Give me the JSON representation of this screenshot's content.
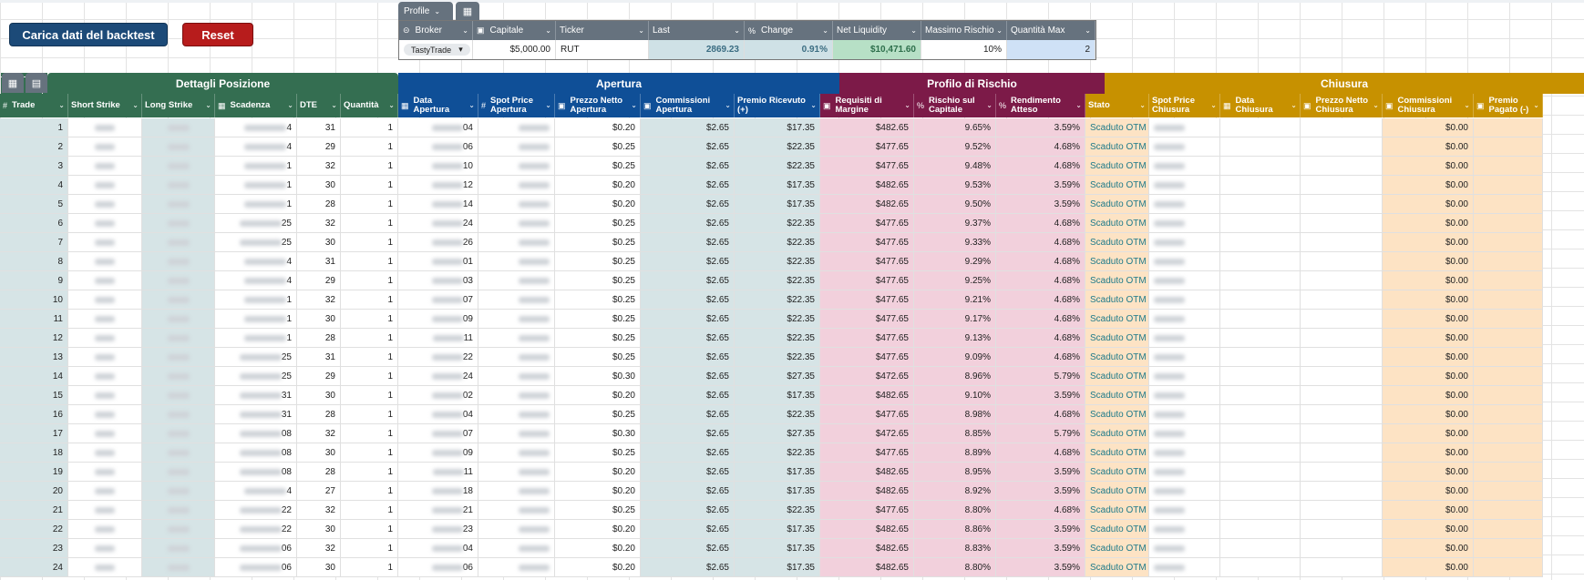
{
  "buttons": {
    "load": "Carica dati del backtest",
    "reset": "Reset"
  },
  "profile": {
    "tab_label": "Profile",
    "headers": [
      {
        "label": "Broker",
        "icon": "⊝"
      },
      {
        "label": "Capitale",
        "icon": "▣"
      },
      {
        "label": "Ticker",
        "icon": ""
      },
      {
        "label": "Last",
        "icon": ""
      },
      {
        "label": "Change",
        "icon": "%"
      },
      {
        "label": "Net Liquidity",
        "icon": ""
      },
      {
        "label": "Massimo Rischio",
        "icon": ""
      },
      {
        "label": "Quantità Max",
        "icon": ""
      }
    ],
    "values": {
      "broker": "TastyTrade",
      "capitale": "$5,000.00",
      "ticker": "RUT",
      "last": "2869.23",
      "change": "0.91%",
      "net_liquidity": "$10,471.60",
      "massimo_rischio": "10%",
      "quantita_max": "2"
    }
  },
  "sections": {
    "dettagli": "Dettagli Posizione",
    "apertura": "Apertura",
    "profilo": "Profilo di Rischio",
    "chiusura": "Chiusura"
  },
  "columns": [
    {
      "label": "Trade",
      "icon": "#"
    },
    {
      "label": "Short Strike",
      "icon": ""
    },
    {
      "label": "Long Strike",
      "icon": ""
    },
    {
      "label": "Scadenza",
      "icon": "▦"
    },
    {
      "label": "DTE",
      "icon": ""
    },
    {
      "label": "Quantità",
      "icon": ""
    },
    {
      "label": "Data Apertura",
      "icon": "▦"
    },
    {
      "label": "Spot Price Apertura",
      "icon": "#"
    },
    {
      "label": "Prezzo Netto Apertura",
      "icon": "▣"
    },
    {
      "label": "Commissioni Apertura",
      "icon": "▣"
    },
    {
      "label": "Premio Ricevuto (+)",
      "icon": ""
    },
    {
      "label": "Requisiti di Margine",
      "icon": "▣"
    },
    {
      "label": "Rischio sul Capitale",
      "icon": "%"
    },
    {
      "label": "Rendimento Atteso",
      "icon": "%"
    },
    {
      "label": "Stato",
      "icon": ""
    },
    {
      "label": "Spot Price Chiusura",
      "icon": ""
    },
    {
      "label": "Data Chiusura",
      "icon": "▦"
    },
    {
      "label": "Prezzo Netto Chiusura",
      "icon": "▣"
    },
    {
      "label": "Commissioni Chiusura",
      "icon": "▣"
    },
    {
      "label": "Premio Pagato (-)",
      "icon": "▣"
    }
  ],
  "rows": [
    {
      "trade": "1",
      "scad": "4",
      "dte": "31",
      "qty": "1",
      "data": "04",
      "netto": "$0.20",
      "comm": "$2.65",
      "premio": "$17.35",
      "margine": "$482.65",
      "rischio": "9.65%",
      "rend": "3.59%",
      "stato": "Scaduto OTM",
      "commc": "$0.00"
    },
    {
      "trade": "2",
      "scad": "4",
      "dte": "29",
      "qty": "1",
      "data": "06",
      "netto": "$0.25",
      "comm": "$2.65",
      "premio": "$22.35",
      "margine": "$477.65",
      "rischio": "9.52%",
      "rend": "4.68%",
      "stato": "Scaduto OTM",
      "commc": "$0.00"
    },
    {
      "trade": "3",
      "scad": "1",
      "dte": "32",
      "qty": "1",
      "data": "10",
      "netto": "$0.25",
      "comm": "$2.65",
      "premio": "$22.35",
      "margine": "$477.65",
      "rischio": "9.48%",
      "rend": "4.68%",
      "stato": "Scaduto OTM",
      "commc": "$0.00"
    },
    {
      "trade": "4",
      "scad": "1",
      "dte": "30",
      "qty": "1",
      "data": "12",
      "netto": "$0.20",
      "comm": "$2.65",
      "premio": "$17.35",
      "margine": "$482.65",
      "rischio": "9.53%",
      "rend": "3.59%",
      "stato": "Scaduto OTM",
      "commc": "$0.00"
    },
    {
      "trade": "5",
      "scad": "1",
      "dte": "28",
      "qty": "1",
      "data": "14",
      "netto": "$0.20",
      "comm": "$2.65",
      "premio": "$17.35",
      "margine": "$482.65",
      "rischio": "9.50%",
      "rend": "3.59%",
      "stato": "Scaduto OTM",
      "commc": "$0.00"
    },
    {
      "trade": "6",
      "scad": "25",
      "dte": "32",
      "qty": "1",
      "data": "24",
      "netto": "$0.25",
      "comm": "$2.65",
      "premio": "$22.35",
      "margine": "$477.65",
      "rischio": "9.37%",
      "rend": "4.68%",
      "stato": "Scaduto OTM",
      "commc": "$0.00"
    },
    {
      "trade": "7",
      "scad": "25",
      "dte": "30",
      "qty": "1",
      "data": "26",
      "netto": "$0.25",
      "comm": "$2.65",
      "premio": "$22.35",
      "margine": "$477.65",
      "rischio": "9.33%",
      "rend": "4.68%",
      "stato": "Scaduto OTM",
      "commc": "$0.00"
    },
    {
      "trade": "8",
      "scad": "4",
      "dte": "31",
      "qty": "1",
      "data": "01",
      "netto": "$0.25",
      "comm": "$2.65",
      "premio": "$22.35",
      "margine": "$477.65",
      "rischio": "9.29%",
      "rend": "4.68%",
      "stato": "Scaduto OTM",
      "commc": "$0.00"
    },
    {
      "trade": "9",
      "scad": "4",
      "dte": "29",
      "qty": "1",
      "data": "03",
      "netto": "$0.25",
      "comm": "$2.65",
      "premio": "$22.35",
      "margine": "$477.65",
      "rischio": "9.25%",
      "rend": "4.68%",
      "stato": "Scaduto OTM",
      "commc": "$0.00"
    },
    {
      "trade": "10",
      "scad": "1",
      "dte": "32",
      "qty": "1",
      "data": "07",
      "netto": "$0.25",
      "comm": "$2.65",
      "premio": "$22.35",
      "margine": "$477.65",
      "rischio": "9.21%",
      "rend": "4.68%",
      "stato": "Scaduto OTM",
      "commc": "$0.00"
    },
    {
      "trade": "11",
      "scad": "1",
      "dte": "30",
      "qty": "1",
      "data": "09",
      "netto": "$0.25",
      "comm": "$2.65",
      "premio": "$22.35",
      "margine": "$477.65",
      "rischio": "9.17%",
      "rend": "4.68%",
      "stato": "Scaduto OTM",
      "commc": "$0.00"
    },
    {
      "trade": "12",
      "scad": "1",
      "dte": "28",
      "qty": "1",
      "data": "11",
      "netto": "$0.25",
      "comm": "$2.65",
      "premio": "$22.35",
      "margine": "$477.65",
      "rischio": "9.13%",
      "rend": "4.68%",
      "stato": "Scaduto OTM",
      "commc": "$0.00"
    },
    {
      "trade": "13",
      "scad": "25",
      "dte": "31",
      "qty": "1",
      "data": "22",
      "netto": "$0.25",
      "comm": "$2.65",
      "premio": "$22.35",
      "margine": "$477.65",
      "rischio": "9.09%",
      "rend": "4.68%",
      "stato": "Scaduto OTM",
      "commc": "$0.00"
    },
    {
      "trade": "14",
      "scad": "25",
      "dte": "29",
      "qty": "1",
      "data": "24",
      "netto": "$0.30",
      "comm": "$2.65",
      "premio": "$27.35",
      "margine": "$472.65",
      "rischio": "8.96%",
      "rend": "5.79%",
      "stato": "Scaduto OTM",
      "commc": "$0.00"
    },
    {
      "trade": "15",
      "scad": "31",
      "dte": "30",
      "qty": "1",
      "data": "02",
      "netto": "$0.20",
      "comm": "$2.65",
      "premio": "$17.35",
      "margine": "$482.65",
      "rischio": "9.10%",
      "rend": "3.59%",
      "stato": "Scaduto OTM",
      "commc": "$0.00"
    },
    {
      "trade": "16",
      "scad": "31",
      "dte": "28",
      "qty": "1",
      "data": "04",
      "netto": "$0.25",
      "comm": "$2.65",
      "premio": "$22.35",
      "margine": "$477.65",
      "rischio": "8.98%",
      "rend": "4.68%",
      "stato": "Scaduto OTM",
      "commc": "$0.00"
    },
    {
      "trade": "17",
      "scad": "08",
      "dte": "32",
      "qty": "1",
      "data": "07",
      "netto": "$0.30",
      "comm": "$2.65",
      "premio": "$27.35",
      "margine": "$472.65",
      "rischio": "8.85%",
      "rend": "5.79%",
      "stato": "Scaduto OTM",
      "commc": "$0.00"
    },
    {
      "trade": "18",
      "scad": "08",
      "dte": "30",
      "qty": "1",
      "data": "09",
      "netto": "$0.25",
      "comm": "$2.65",
      "premio": "$22.35",
      "margine": "$477.65",
      "rischio": "8.89%",
      "rend": "4.68%",
      "stato": "Scaduto OTM",
      "commc": "$0.00"
    },
    {
      "trade": "19",
      "scad": "08",
      "dte": "28",
      "qty": "1",
      "data": "11",
      "netto": "$0.20",
      "comm": "$2.65",
      "premio": "$17.35",
      "margine": "$482.65",
      "rischio": "8.95%",
      "rend": "3.59%",
      "stato": "Scaduto OTM",
      "commc": "$0.00"
    },
    {
      "trade": "20",
      "scad": "4",
      "dte": "27",
      "qty": "1",
      "data": "18",
      "netto": "$0.20",
      "comm": "$2.65",
      "premio": "$17.35",
      "margine": "$482.65",
      "rischio": "8.92%",
      "rend": "3.59%",
      "stato": "Scaduto OTM",
      "commc": "$0.00"
    },
    {
      "trade": "21",
      "scad": "22",
      "dte": "32",
      "qty": "1",
      "data": "21",
      "netto": "$0.25",
      "comm": "$2.65",
      "premio": "$22.35",
      "margine": "$477.65",
      "rischio": "8.80%",
      "rend": "4.68%",
      "stato": "Scaduto OTM",
      "commc": "$0.00"
    },
    {
      "trade": "22",
      "scad": "22",
      "dte": "30",
      "qty": "1",
      "data": "23",
      "netto": "$0.20",
      "comm": "$2.65",
      "premio": "$17.35",
      "margine": "$482.65",
      "rischio": "8.86%",
      "rend": "3.59%",
      "stato": "Scaduto OTM",
      "commc": "$0.00"
    },
    {
      "trade": "23",
      "scad": "06",
      "dte": "32",
      "qty": "1",
      "data": "04",
      "netto": "$0.20",
      "comm": "$2.65",
      "premio": "$17.35",
      "margine": "$482.65",
      "rischio": "8.83%",
      "rend": "3.59%",
      "stato": "Scaduto OTM",
      "commc": "$0.00"
    },
    {
      "trade": "24",
      "scad": "06",
      "dte": "30",
      "qty": "1",
      "data": "06",
      "netto": "$0.20",
      "comm": "$2.65",
      "premio": "$17.35",
      "margine": "$482.65",
      "rischio": "8.80%",
      "rend": "3.59%",
      "stato": "Scaduto OTM",
      "commc": "$0.00"
    }
  ],
  "colors": {
    "green": "#346e51",
    "blue": "#0f4f97",
    "maroon": "#7c1a48",
    "gold": "#c79100",
    "stato_text": "#1e7a8a"
  }
}
